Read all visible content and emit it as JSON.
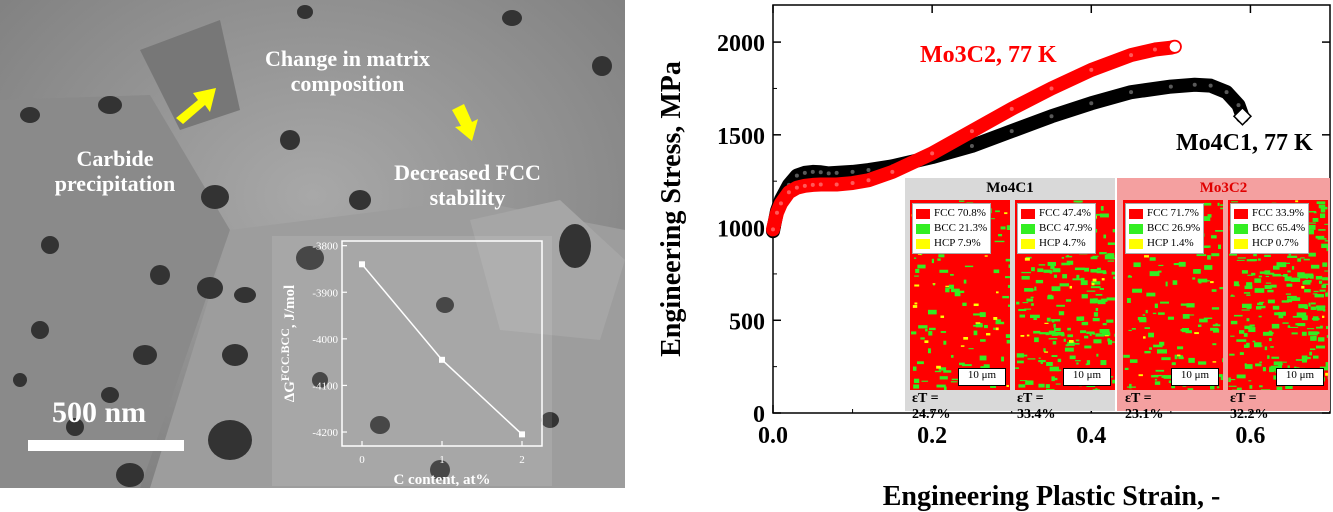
{
  "tem": {
    "annotation_carbide": "Carbide precipitation",
    "annotation_matrix": "Change in matrix composition",
    "annotation_fcc": "Decreased FCC stability",
    "scale_bar_label": "500 nm"
  },
  "chart_data": [
    {
      "type": "line",
      "title": "",
      "xlabel": "C content, at%",
      "ylabel": "ΔG FCC.BCC, J/mol",
      "ylabel_main": "ΔG",
      "ylabel_sup": "FCC.BCC",
      "ylabel_units": ", J/mol",
      "x": [
        0,
        1,
        2
      ],
      "values": [
        -3840,
        -4045,
        -4205
      ],
      "xticks": [
        "0",
        "1",
        "2"
      ],
      "yticks": [
        "-3800",
        "-3900",
        "-4000",
        "-4100",
        "-4200"
      ],
      "xlim": [
        -0.25,
        2.25
      ],
      "ylim": [
        -4230,
        -3790
      ]
    },
    {
      "type": "scatter",
      "title": "",
      "xlabel": "Engineering Plastic Strain, -",
      "ylabel": "Engineering Stress, MPa",
      "xlim": [
        0,
        0.7
      ],
      "ylim": [
        0,
        2200
      ],
      "xticks": [
        "0.0",
        "0.2",
        "0.4",
        "0.6"
      ],
      "yticks": [
        "0",
        "500",
        "1000",
        "1500",
        "2000"
      ],
      "series": [
        {
          "name": "Mo4C1, 77 K",
          "color": "#000000",
          "x": [
            0.0,
            0.005,
            0.01,
            0.02,
            0.03,
            0.04,
            0.05,
            0.06,
            0.07,
            0.08,
            0.1,
            0.12,
            0.15,
            0.2,
            0.25,
            0.3,
            0.35,
            0.4,
            0.45,
            0.5,
            0.53,
            0.55,
            0.57,
            0.585,
            0.59
          ],
          "y": [
            980,
            1090,
            1150,
            1230,
            1280,
            1295,
            1300,
            1298,
            1292,
            1295,
            1300,
            1310,
            1330,
            1380,
            1440,
            1520,
            1600,
            1670,
            1730,
            1760,
            1770,
            1765,
            1730,
            1660,
            1600
          ]
        },
        {
          "name": "Mo3C2, 77 K",
          "color": "#ff0000",
          "x": [
            0.0,
            0.005,
            0.01,
            0.02,
            0.03,
            0.04,
            0.05,
            0.06,
            0.08,
            0.1,
            0.12,
            0.15,
            0.2,
            0.25,
            0.3,
            0.35,
            0.4,
            0.45,
            0.48,
            0.5,
            0.505
          ],
          "y": [
            990,
            1080,
            1130,
            1190,
            1215,
            1225,
            1230,
            1232,
            1232,
            1240,
            1255,
            1300,
            1400,
            1520,
            1640,
            1750,
            1850,
            1930,
            1960,
            1970,
            1975
          ]
        }
      ],
      "inset_maps": [
        {
          "group": "Mo4C1",
          "fcc": "FCC 70.8%",
          "bcc": "BCC 21.3%",
          "hcp": "HCP 7.9%",
          "scale": "10 μm",
          "strain": "εT = 24.7%"
        },
        {
          "group": "Mo4C1",
          "fcc": "FCC 47.4%",
          "bcc": "BCC 47.9%",
          "hcp": "HCP 4.7%",
          "scale": "10 μm",
          "strain": "εT = 33.4%"
        },
        {
          "group": "Mo3C2",
          "fcc": "FCC 71.7%",
          "bcc": "BCC 26.9%",
          "hcp": "HCP 1.4%",
          "scale": "10 μm",
          "strain": "εT = 23.1%"
        },
        {
          "group": "Mo3C2",
          "fcc": "FCC 33.9%",
          "bcc": "BCC 65.4%",
          "hcp": "HCP 0.7%",
          "scale": "10 μm",
          "strain": "εT = 32.2%"
        }
      ],
      "group_titles": [
        "Mo4C1",
        "Mo3C2"
      ],
      "colors": {
        "fcc": "#ff0000",
        "bcc": "#33ee22",
        "hcp": "#ffff00",
        "group1_bg": "#d9d9d9",
        "group2_bg": "#f4a0a0"
      }
    }
  ]
}
